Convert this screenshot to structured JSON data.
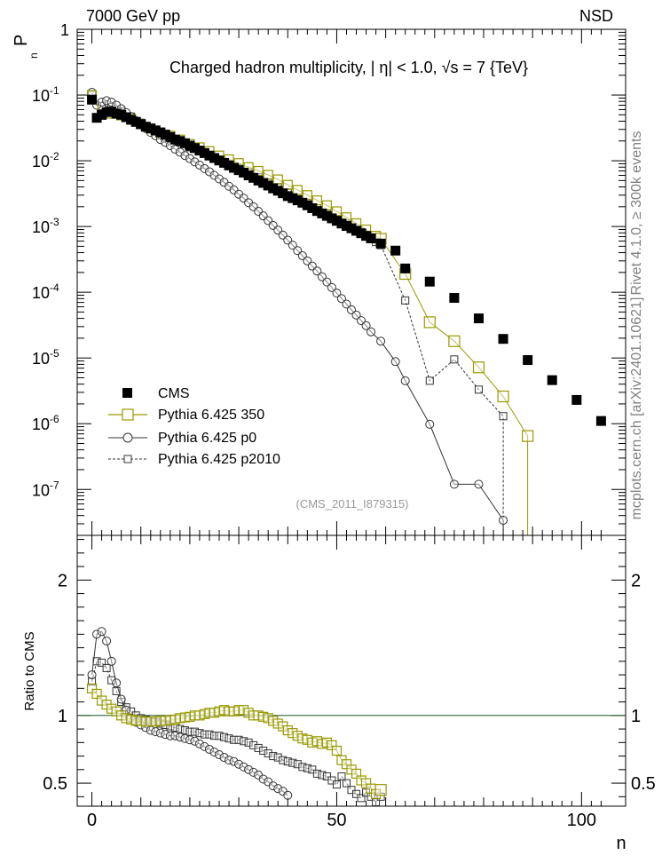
{
  "header": {
    "left_label": "7000 GeV pp",
    "right_label": "NSD"
  },
  "side_labels": {
    "rivet": "Rivet 4.1.0, ≥ 300k events",
    "mcplots": "mcplots.cern.ch [arXiv:2401.10621]"
  },
  "colors": {
    "cms": "#000000",
    "p350": "#999900",
    "p0": "#333333",
    "p2010": "#333333",
    "ratio_line": "#336633"
  },
  "chart_data": [
    {
      "type": "scatter",
      "title": "Charged hadron multiplicity, |  η| < 1.0,  √s = 7 {TeV}",
      "watermark": "(CMS_2011_I879315)",
      "ylabel": "P",
      "ylabel_sub": "n",
      "yscale": "log",
      "xlim": [
        -3,
        109
      ],
      "ylim": [
        2e-08,
        1
      ],
      "ytick_labels": [
        {
          "base": "1",
          "exp": ""
        },
        {
          "base": "10",
          "exp": "-1"
        },
        {
          "base": "10",
          "exp": "-2"
        },
        {
          "base": "10",
          "exp": "-3"
        },
        {
          "base": "10",
          "exp": "-4"
        },
        {
          "base": "10",
          "exp": "-5"
        },
        {
          "base": "10",
          "exp": "-6"
        },
        {
          "base": "10",
          "exp": "-7"
        }
      ],
      "legend": [
        "CMS",
        "Pythia 6.425 350",
        "Pythia 6.425 p0",
        "Pythia 6.425 p2010"
      ],
      "legend_position": "middle-left",
      "series": [
        {
          "name": "CMS",
          "x": [
            0,
            1,
            2,
            3,
            4,
            5,
            6,
            7,
            8,
            9,
            10,
            11,
            12,
            13,
            14,
            15,
            16,
            17,
            18,
            19,
            20,
            21,
            22,
            23,
            24,
            25,
            26,
            27,
            28,
            29,
            30,
            31,
            32,
            33,
            34,
            35,
            36,
            37,
            38,
            39,
            40,
            41,
            42,
            43,
            44,
            45,
            46,
            47,
            48,
            49,
            50,
            51,
            52,
            53,
            54,
            55,
            56,
            57,
            59,
            62,
            64,
            69,
            74,
            79,
            84,
            89,
            94,
            99,
            104
          ],
          "y": [
            0.085,
            0.045,
            0.05,
            0.055,
            0.056,
            0.052,
            0.05,
            0.046,
            0.042,
            0.039,
            0.036,
            0.033,
            0.031,
            0.029,
            0.027,
            0.025,
            0.023,
            0.021,
            0.02,
            0.0185,
            0.017,
            0.0156,
            0.0143,
            0.0131,
            0.012,
            0.011,
            0.0101,
            0.0093,
            0.0085,
            0.0078,
            0.0072,
            0.0066,
            0.006,
            0.0055,
            0.005,
            0.0046,
            0.0042,
            0.0038,
            0.0035,
            0.0032,
            0.0029,
            0.0027,
            0.0025,
            0.0023,
            0.0021,
            0.0019,
            0.00172,
            0.00158,
            0.00145,
            0.00133,
            0.00122,
            0.00111,
            0.00102,
            0.00094,
            0.00086,
            0.00079,
            0.00072,
            0.00066,
            0.00055,
            0.00043,
            0.00023,
            0.000145,
            8.2e-05,
            4e-05,
            1.95e-05,
            9.3e-06,
            4.6e-06,
            2.3e-06,
            1.1e-06
          ]
        },
        {
          "name": "Pythia 6.425 350",
          "x": [
            0,
            2,
            4,
            6,
            8,
            10,
            12,
            14,
            16,
            18,
            20,
            22,
            24,
            26,
            28,
            30,
            32,
            34,
            36,
            38,
            40,
            42,
            44,
            46,
            48,
            50,
            52,
            54,
            56,
            58,
            59,
            64,
            69,
            74,
            79,
            84,
            89
          ],
          "y": [
            0.1,
            0.05,
            0.052,
            0.049,
            0.043,
            0.036,
            0.031,
            0.027,
            0.024,
            0.021,
            0.018,
            0.016,
            0.014,
            0.012,
            0.0105,
            0.0092,
            0.008,
            0.007,
            0.0061,
            0.0052,
            0.0043,
            0.0036,
            0.003,
            0.0025,
            0.0021,
            0.0017,
            0.00138,
            0.00112,
            0.0009,
            0.00072,
            0.00065,
            0.00019,
            3.5e-05,
            1.8e-05,
            7.2e-06,
            2.6e-06,
            6.5e-07
          ]
        },
        {
          "name": "Pythia 6.425 p0",
          "x": [
            0,
            1,
            2,
            3,
            4,
            5,
            6,
            7,
            8,
            9,
            10,
            11,
            12,
            13,
            14,
            15,
            16,
            17,
            18,
            19,
            20,
            21,
            22,
            23,
            24,
            25,
            26,
            27,
            28,
            29,
            30,
            31,
            32,
            33,
            34,
            35,
            36,
            37,
            38,
            39,
            40,
            41,
            42,
            43,
            44,
            45,
            46,
            47,
            48,
            49,
            50,
            51,
            52,
            53,
            54,
            55,
            56,
            57,
            59,
            62,
            64,
            69,
            74,
            79,
            84
          ],
          "y": [
            0.11,
            0.07,
            0.078,
            0.082,
            0.078,
            0.07,
            0.062,
            0.054,
            0.047,
            0.041,
            0.036,
            0.031,
            0.027,
            0.024,
            0.021,
            0.019,
            0.017,
            0.015,
            0.0135,
            0.012,
            0.0108,
            0.0096,
            0.0086,
            0.0076,
            0.0068,
            0.006,
            0.0053,
            0.0047,
            0.0041,
            0.0036,
            0.0031,
            0.0027,
            0.0023,
            0.002,
            0.0017,
            0.00145,
            0.00123,
            0.00104,
            0.00088,
            0.00074,
            0.00062,
            0.00052,
            0.00043,
            0.00036,
            0.0003,
            0.00025,
            0.00021,
            0.000172,
            0.000143,
            0.000118,
            9.7e-05,
            8e-05,
            6.6e-05,
            5.4e-05,
            4.5e-05,
            3.7e-05,
            3.1e-05,
            2.5e-05,
            1.8e-05,
            8.8e-06,
            4.5e-06,
            9.8e-07,
            1.2e-07,
            1.2e-07,
            3.4e-08
          ]
        },
        {
          "name": "Pythia 6.425 p2010",
          "x": [
            0,
            2,
            4,
            6,
            8,
            10,
            12,
            14,
            16,
            18,
            20,
            22,
            24,
            26,
            28,
            30,
            32,
            34,
            36,
            38,
            40,
            42,
            44,
            46,
            48,
            50,
            52,
            54,
            56,
            58,
            59,
            64,
            69,
            74,
            79,
            84
          ],
          "y": [
            0.1,
            0.068,
            0.066,
            0.057,
            0.047,
            0.038,
            0.031,
            0.026,
            0.022,
            0.019,
            0.016,
            0.0139,
            0.012,
            0.0103,
            0.0089,
            0.0077,
            0.0066,
            0.0056,
            0.0047,
            0.004,
            0.0033,
            0.0027,
            0.0023,
            0.0019,
            0.00157,
            0.0013,
            0.0011,
            0.00089,
            0.00072,
            0.00058,
            0.00052,
            7.5e-05,
            4.5e-06,
            9.5e-06,
            3.3e-06,
            1.3e-06
          ]
        }
      ]
    },
    {
      "type": "scatter",
      "ylabel": "Ratio to CMS",
      "xlabel": "n",
      "xlim": [
        -3,
        109
      ],
      "ylim": [
        0.33,
        2.33
      ],
      "xticks": [
        0,
        50,
        100
      ],
      "yticks": [
        0.5,
        1,
        2
      ],
      "xtick_labels": [
        "0",
        "50",
        "100"
      ],
      "ytick_labels": [
        "0.5",
        "1",
        "2"
      ],
      "reference_line": 1,
      "series": [
        {
          "name": "Pythia 6.425 350",
          "x": [
            0,
            1,
            2,
            3,
            4,
            5,
            6,
            7,
            8,
            9,
            10,
            11,
            12,
            13,
            14,
            15,
            16,
            17,
            18,
            19,
            20,
            21,
            22,
            23,
            24,
            25,
            26,
            27,
            28,
            29,
            30,
            31,
            32,
            33,
            34,
            35,
            36,
            37,
            38,
            39,
            40,
            41,
            42,
            43,
            44,
            45,
            46,
            47,
            48,
            49,
            50,
            51,
            52,
            53,
            54,
            55,
            56,
            57,
            58,
            59
          ],
          "y": [
            1.2,
            1.16,
            1.11,
            1.08,
            1.05,
            1.03,
            1.0,
            0.98,
            0.97,
            0.96,
            0.96,
            0.955,
            0.955,
            0.955,
            0.96,
            0.96,
            0.965,
            0.97,
            0.98,
            0.985,
            0.99,
            1.0,
            1.0,
            1.01,
            1.02,
            1.02,
            1.03,
            1.04,
            1.03,
            1.03,
            1.04,
            1.04,
            1.02,
            1.0,
            1.0,
            0.99,
            0.98,
            0.96,
            0.94,
            0.92,
            0.89,
            0.87,
            0.85,
            0.83,
            0.82,
            0.8,
            0.81,
            0.79,
            0.8,
            0.78,
            0.74,
            0.67,
            0.64,
            0.6,
            0.57,
            0.52,
            0.5,
            0.46,
            0.42,
            0.45
          ]
        },
        {
          "name": "Pythia 6.425 p0",
          "x": [
            0,
            1,
            2,
            3,
            4,
            5,
            6,
            7,
            8,
            9,
            10,
            11,
            12,
            13,
            14,
            15,
            16,
            17,
            18,
            19,
            20,
            21,
            22,
            23,
            24,
            25,
            26,
            27,
            28,
            29,
            30,
            31,
            32,
            33,
            34,
            35,
            36,
            37,
            38,
            39,
            40
          ],
          "y": [
            1.3,
            1.6,
            1.62,
            1.55,
            1.4,
            1.24,
            1.12,
            1.04,
            0.98,
            0.95,
            0.93,
            0.91,
            0.89,
            0.88,
            0.87,
            0.86,
            0.85,
            0.85,
            0.84,
            0.83,
            0.82,
            0.81,
            0.79,
            0.77,
            0.75,
            0.73,
            0.71,
            0.69,
            0.67,
            0.66,
            0.64,
            0.62,
            0.6,
            0.58,
            0.56,
            0.53,
            0.51,
            0.48,
            0.46,
            0.44,
            0.41
          ]
        },
        {
          "name": "Pythia 6.425 p2010",
          "x": [
            0,
            1,
            2,
            3,
            4,
            5,
            6,
            7,
            8,
            9,
            10,
            11,
            12,
            13,
            14,
            15,
            16,
            17,
            18,
            19,
            20,
            21,
            22,
            23,
            24,
            25,
            26,
            27,
            28,
            29,
            30,
            31,
            32,
            33,
            34,
            35,
            36,
            37,
            38,
            39,
            40,
            41,
            42,
            43,
            44,
            45,
            46,
            47,
            48,
            49,
            50,
            51,
            52,
            53,
            54,
            55,
            56,
            57,
            58,
            59
          ],
          "y": [
            1.25,
            1.4,
            1.39,
            1.35,
            1.26,
            1.18,
            1.1,
            1.06,
            1.03,
            1.0,
            0.98,
            0.97,
            0.96,
            0.95,
            0.94,
            0.93,
            0.92,
            0.91,
            0.9,
            0.89,
            0.88,
            0.88,
            0.87,
            0.86,
            0.86,
            0.85,
            0.85,
            0.84,
            0.83,
            0.82,
            0.82,
            0.81,
            0.8,
            0.78,
            0.76,
            0.74,
            0.72,
            0.7,
            0.69,
            0.67,
            0.66,
            0.65,
            0.64,
            0.62,
            0.61,
            0.6,
            0.57,
            0.56,
            0.55,
            0.52,
            0.49,
            0.55,
            0.5,
            0.45,
            0.42,
            0.39,
            0.43,
            0.4,
            0.36,
            0.4
          ]
        }
      ]
    }
  ]
}
